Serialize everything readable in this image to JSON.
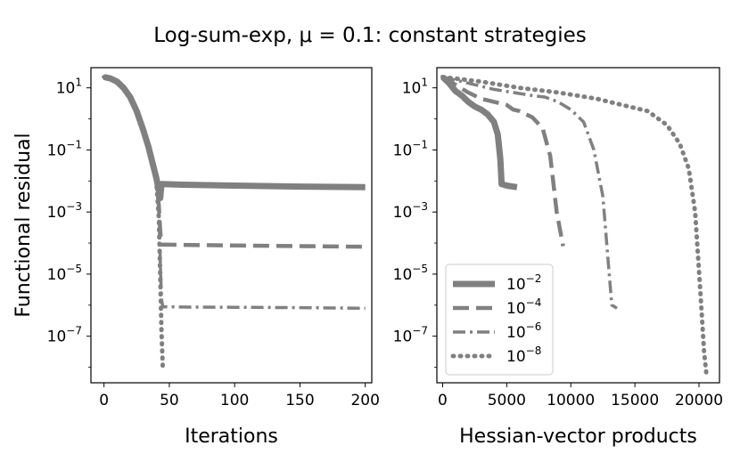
{
  "figure": {
    "title": "Log-sum-exp, μ = 0.1: constant strategies",
    "series_color": "#808080"
  },
  "chart_data": [
    {
      "type": "line",
      "xlabel": "Iterations",
      "ylabel": "Functional residual",
      "yscale": "log",
      "xlim": [
        -10,
        205
      ],
      "ylim_log10": [
        -8.5,
        1.65
      ],
      "xticks": [
        0,
        50,
        100,
        150,
        200
      ],
      "xtick_labels": [
        "0",
        "50",
        "100",
        "150",
        "200"
      ],
      "yticks_log10": [
        1,
        -1,
        -3,
        -5,
        -7
      ],
      "ytick_labels": [
        {
          "base": "10",
          "exp": "1"
        },
        {
          "base": "10",
          "exp": "−1"
        },
        {
          "base": "10",
          "exp": "−3"
        },
        {
          "base": "10",
          "exp": "−5"
        },
        {
          "base": "10",
          "exp": "−7"
        }
      ],
      "series": [
        {
          "name": "1e-2",
          "style": "solid",
          "x": [
            0,
            5,
            10,
            15,
            20,
            25,
            30,
            34,
            37,
            40,
            42,
            43,
            44,
            60,
            100,
            150,
            200
          ],
          "y_log10": [
            1.35,
            1.3,
            1.2,
            1.0,
            0.7,
            0.25,
            -0.35,
            -0.9,
            -1.4,
            -1.9,
            -2.3,
            -2.55,
            -2.1,
            -2.12,
            -2.15,
            -2.18,
            -2.2
          ]
        },
        {
          "name": "1e-4",
          "style": "dashed",
          "x": [
            0,
            5,
            10,
            15,
            20,
            25,
            30,
            34,
            37,
            40,
            42,
            43,
            44,
            60,
            100,
            150,
            200
          ],
          "y_log10": [
            1.35,
            1.3,
            1.2,
            1.0,
            0.7,
            0.25,
            -0.35,
            -0.9,
            -1.4,
            -2.0,
            -2.8,
            -3.6,
            -4.05,
            -4.06,
            -4.08,
            -4.1,
            -4.12
          ]
        },
        {
          "name": "1e-6",
          "style": "dashdot",
          "x": [
            0,
            5,
            10,
            15,
            20,
            25,
            30,
            34,
            37,
            40,
            42,
            43,
            44,
            45,
            60,
            100,
            150,
            200
          ],
          "y_log10": [
            1.35,
            1.3,
            1.2,
            1.0,
            0.7,
            0.25,
            -0.35,
            -0.9,
            -1.4,
            -2.0,
            -3.0,
            -4.5,
            -5.8,
            -6.05,
            -6.06,
            -6.07,
            -6.08,
            -6.1
          ]
        },
        {
          "name": "1e-8",
          "style": "dotted",
          "x": [
            0,
            5,
            10,
            15,
            20,
            25,
            30,
            34,
            37,
            40,
            42,
            43,
            44,
            45
          ],
          "y_log10": [
            1.35,
            1.3,
            1.2,
            1.0,
            0.7,
            0.25,
            -0.35,
            -0.9,
            -1.4,
            -2.0,
            -3.2,
            -5.0,
            -6.8,
            -8.0
          ]
        }
      ]
    },
    {
      "type": "line",
      "xlabel": "Hessian-vector products",
      "ylabel": "",
      "yscale": "log",
      "xlim": [
        -450,
        21600
      ],
      "ylim_log10": [
        -8.5,
        1.65
      ],
      "xticks": [
        0,
        5000,
        10000,
        15000,
        20000
      ],
      "xtick_labels": [
        "0",
        "5000",
        "10000",
        "15000",
        "20000"
      ],
      "yticks_log10": [
        1,
        -1,
        -3,
        -5,
        -7
      ],
      "ytick_labels": [
        {
          "base": "10",
          "exp": "1"
        },
        {
          "base": "10",
          "exp": "−1"
        },
        {
          "base": "10",
          "exp": "−3"
        },
        {
          "base": "10",
          "exp": "−5"
        },
        {
          "base": "10",
          "exp": "−7"
        }
      ],
      "series": [
        {
          "name": "1e-2",
          "style": "solid",
          "x": [
            0,
            500,
            1000,
            1500,
            2000,
            2500,
            3000,
            3500,
            4000,
            4300,
            4500,
            4600,
            5000,
            5800
          ],
          "y_log10": [
            1.35,
            1.15,
            0.9,
            0.75,
            0.55,
            0.4,
            0.3,
            0.15,
            -0.1,
            -0.5,
            -1.3,
            -2.1,
            -2.15,
            -2.2
          ]
        },
        {
          "name": "1e-4",
          "style": "dashed",
          "x": [
            0,
            1000,
            2000,
            3000,
            4000,
            5000,
            5500,
            6000,
            7000,
            7800,
            8400,
            8900,
            9400
          ],
          "y_log10": [
            1.35,
            1.1,
            0.85,
            0.65,
            0.55,
            0.45,
            0.3,
            0.25,
            0.05,
            -0.3,
            -1.2,
            -3.0,
            -4.1
          ]
        },
        {
          "name": "1e-6",
          "style": "dashdot",
          "x": [
            0,
            2000,
            4000,
            5500,
            7000,
            8000,
            9000,
            10000,
            10500,
            11000,
            11800,
            12500,
            12900,
            13200,
            13600
          ],
          "y_log10": [
            1.35,
            1.15,
            0.95,
            0.85,
            0.75,
            0.7,
            0.55,
            0.3,
            0.1,
            -0.1,
            -1.0,
            -2.5,
            -4.5,
            -6.0,
            -6.1
          ]
        },
        {
          "name": "1e-8",
          "style": "dotted",
          "x": [
            0,
            3000,
            6000,
            9000,
            12000,
            14000,
            16000,
            17500,
            18500,
            19200,
            19700,
            20100,
            20400,
            20600
          ],
          "y_log10": [
            1.35,
            1.2,
            1.0,
            0.85,
            0.65,
            0.45,
            0.25,
            -0.2,
            -0.8,
            -1.6,
            -3.0,
            -5.5,
            -7.5,
            -8.3
          ]
        }
      ],
      "legend": {
        "position": "lower-left",
        "entries": [
          {
            "base": "10",
            "exp": "−2",
            "style": "solid"
          },
          {
            "base": "10",
            "exp": "−4",
            "style": "dashed"
          },
          {
            "base": "10",
            "exp": "−6",
            "style": "dashdot"
          },
          {
            "base": "10",
            "exp": "−8",
            "style": "dotted"
          }
        ]
      }
    }
  ]
}
